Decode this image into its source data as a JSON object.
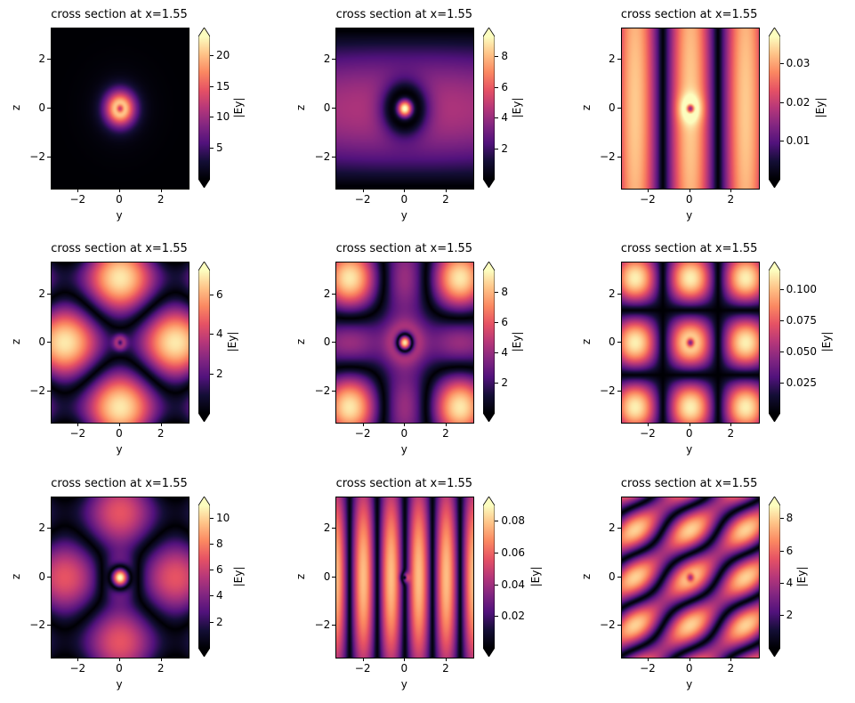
{
  "figure": {
    "background": "#ffffff",
    "colormap": "magma",
    "colormap_stops": [
      [
        0.0,
        "#000004"
      ],
      [
        0.125,
        "#140e36"
      ],
      [
        0.25,
        "#51127c"
      ],
      [
        0.375,
        "#822681"
      ],
      [
        0.5,
        "#b73779"
      ],
      [
        0.625,
        "#e65264"
      ],
      [
        0.75,
        "#fb8861"
      ],
      [
        0.875,
        "#fec287"
      ],
      [
        1.0,
        "#fcfdbf"
      ]
    ]
  },
  "chart_data": [
    {
      "type": "heatmap",
      "title": "cross section at x=1.55",
      "xlabel": "y",
      "ylabel": "z",
      "x_range": [
        -3.3,
        3.3
      ],
      "y_range": [
        -3.3,
        3.3
      ],
      "x_ticks": [
        {
          "v": -2,
          "label": "−2"
        },
        {
          "v": 0,
          "label": "0"
        },
        {
          "v": 2,
          "label": "2"
        }
      ],
      "y_ticks": [
        {
          "v": 2,
          "label": "2"
        },
        {
          "v": 0,
          "label": "0"
        },
        {
          "v": -2,
          "label": "−2"
        }
      ],
      "colorbar": {
        "label": "|Ey|",
        "vmin": 0,
        "vmax": 23,
        "ticks": [
          {
            "v": 5,
            "label": "5"
          },
          {
            "v": 10,
            "label": "10"
          },
          {
            "v": 15,
            "label": "15"
          },
          {
            "v": 20,
            "label": "20"
          }
        ]
      },
      "field": {
        "terms": [
          {
            "type": "gauss",
            "amp": 23,
            "sigma": 0.5
          },
          {
            "type": "gauss",
            "amp": -12,
            "sigma": 0.12
          },
          {
            "type": "gauss",
            "amp": 1.3,
            "sigma": 1.1
          }
        ]
      }
    },
    {
      "type": "heatmap",
      "title": "cross section at x=1.55",
      "xlabel": "y",
      "ylabel": "z",
      "x_range": [
        -3.3,
        3.3
      ],
      "y_range": [
        -3.3,
        3.3
      ],
      "x_ticks": [
        {
          "v": -2,
          "label": "−2"
        },
        {
          "v": 0,
          "label": "0"
        },
        {
          "v": 2,
          "label": "2"
        }
      ],
      "y_ticks": [
        {
          "v": 2,
          "label": "2"
        },
        {
          "v": 0,
          "label": "0"
        },
        {
          "v": -2,
          "label": "−2"
        }
      ],
      "colorbar": {
        "label": "|Ey|",
        "vmin": 0,
        "vmax": 9.3,
        "ticks": [
          {
            "v": 2,
            "label": "2"
          },
          {
            "v": 4,
            "label": "4"
          },
          {
            "v": 6,
            "label": "6"
          },
          {
            "v": 8,
            "label": "8"
          }
        ]
      },
      "field": {
        "terms": [
          {
            "type": "mode",
            "amp": 4.6,
            "fy": "cos",
            "ky": 0.12,
            "fz": "cos",
            "kz": 0.49
          },
          {
            "type": "gauss",
            "amp": -8,
            "sigma": 0.7
          },
          {
            "type": "gauss",
            "amp": 13,
            "sigma": 0.28
          }
        ]
      }
    },
    {
      "type": "heatmap",
      "title": "cross section at x=1.55",
      "xlabel": "y",
      "ylabel": "z",
      "x_range": [
        -3.3,
        3.3
      ],
      "y_range": [
        -3.3,
        3.3
      ],
      "x_ticks": [
        {
          "v": -2,
          "label": "−2"
        },
        {
          "v": 0,
          "label": "0"
        },
        {
          "v": 2,
          "label": "2"
        }
      ],
      "y_ticks": [
        {
          "v": 2,
          "label": "2"
        },
        {
          "v": 0,
          "label": "0"
        },
        {
          "v": -2,
          "label": "−2"
        }
      ],
      "colorbar": {
        "label": "|Ey|",
        "vmin": 0,
        "vmax": 0.037,
        "ticks": [
          {
            "v": 0.01,
            "label": "0.01"
          },
          {
            "v": 0.02,
            "label": "0.02"
          },
          {
            "v": 0.03,
            "label": "0.03"
          }
        ]
      },
      "field": {
        "terms": [
          {
            "type": "mode",
            "amp": 0.033,
            "fy": "cos",
            "ky": 1.18,
            "fz": "cos",
            "kz": 0.1
          },
          {
            "type": "gauss",
            "amp": -0.03,
            "sigma": 0.13
          },
          {
            "type": "gauss",
            "amp": 0.012,
            "sigma": 0.4
          }
        ]
      }
    },
    {
      "type": "heatmap",
      "title": "cross section at x=1.55",
      "xlabel": "y",
      "ylabel": "z",
      "x_range": [
        -3.3,
        3.3
      ],
      "y_range": [
        -3.3,
        3.3
      ],
      "x_ticks": [
        {
          "v": -2,
          "label": "−2"
        },
        {
          "v": 0,
          "label": "0"
        },
        {
          "v": 2,
          "label": "2"
        }
      ],
      "y_ticks": [
        {
          "v": 2,
          "label": "2"
        },
        {
          "v": 0,
          "label": "0"
        },
        {
          "v": -2,
          "label": "−2"
        }
      ],
      "colorbar": {
        "label": "|Ey|",
        "vmin": 0,
        "vmax": 7.2,
        "ticks": [
          {
            "v": 2,
            "label": "2"
          },
          {
            "v": 4,
            "label": "4"
          },
          {
            "v": 6,
            "label": "6"
          }
        ]
      },
      "field": {
        "terms": [
          {
            "type": "mode",
            "amp": 3.9,
            "fy": "cos",
            "ky": 0,
            "fz": "cos",
            "kz": 1.18
          },
          {
            "type": "mode",
            "amp": -3.0,
            "fy": "cos",
            "ky": 1.18,
            "fz": "cos",
            "kz": 0
          },
          {
            "type": "gauss",
            "amp": 4,
            "sigma": 0.22
          },
          {
            "type": "gauss",
            "amp": -3.5,
            "sigma": 0.09
          }
        ]
      }
    },
    {
      "type": "heatmap",
      "title": "cross section at x=1.55",
      "xlabel": "y",
      "ylabel": "z",
      "x_range": [
        -3.3,
        3.3
      ],
      "y_range": [
        -3.3,
        3.3
      ],
      "x_ticks": [
        {
          "v": -2,
          "label": "−2"
        },
        {
          "v": 0,
          "label": "0"
        },
        {
          "v": 2,
          "label": "2"
        }
      ],
      "y_ticks": [
        {
          "v": 2,
          "label": "2"
        },
        {
          "v": 0,
          "label": "0"
        },
        {
          "v": -2,
          "label": "−2"
        }
      ],
      "colorbar": {
        "label": "|Ey|",
        "vmin": 0,
        "vmax": 9.4,
        "ticks": [
          {
            "v": 2,
            "label": "2"
          },
          {
            "v": 4,
            "label": "4"
          },
          {
            "v": 6,
            "label": "6"
          },
          {
            "v": 8,
            "label": "8"
          }
        ]
      },
      "field": {
        "terms": [
          {
            "type": "mode",
            "amp": 4,
            "fy": "cos",
            "ky": 1.18,
            "fz": "cos",
            "kz": 1.18
          },
          {
            "type": "mode",
            "amp": -2.5,
            "fy": "cos",
            "ky": 1.18,
            "fz": "cos",
            "kz": 0
          },
          {
            "type": "mode",
            "amp": -2.5,
            "fy": "cos",
            "ky": 0,
            "fz": "cos",
            "kz": 1.18
          },
          {
            "type": "gauss",
            "amp": -6,
            "sigma": 0.65
          },
          {
            "type": "gauss",
            "amp": 16,
            "sigma": 0.26
          }
        ]
      }
    },
    {
      "type": "heatmap",
      "title": "cross section at x=1.55",
      "xlabel": "y",
      "ylabel": "z",
      "x_range": [
        -3.3,
        3.3
      ],
      "y_range": [
        -3.3,
        3.3
      ],
      "x_ticks": [
        {
          "v": -2,
          "label": "−2"
        },
        {
          "v": 0,
          "label": "0"
        },
        {
          "v": 2,
          "label": "2"
        }
      ],
      "y_ticks": [
        {
          "v": 2,
          "label": "2"
        },
        {
          "v": 0,
          "label": "0"
        },
        {
          "v": -2,
          "label": "−2"
        }
      ],
      "colorbar": {
        "label": "|Ey|",
        "vmin": 0,
        "vmax": 0.115,
        "ticks": [
          {
            "v": 0.025,
            "label": "0.025"
          },
          {
            "v": 0.05,
            "label": "0.050"
          },
          {
            "v": 0.075,
            "label": "0.075"
          },
          {
            "v": 0.1,
            "label": "0.100"
          }
        ]
      },
      "field": {
        "terms": [
          {
            "type": "mode",
            "amp": 0.112,
            "fy": "cos",
            "ky": 1.18,
            "fz": "cos",
            "kz": 1.18
          },
          {
            "type": "gauss",
            "amp": -0.07,
            "sigma": 0.12
          }
        ]
      }
    },
    {
      "type": "heatmap",
      "title": "cross section at x=1.55",
      "xlabel": "y",
      "ylabel": "z",
      "x_range": [
        -3.3,
        3.3
      ],
      "y_range": [
        -3.3,
        3.3
      ],
      "x_ticks": [
        {
          "v": -2,
          "label": "−2"
        },
        {
          "v": 0,
          "label": "0"
        },
        {
          "v": 2,
          "label": "2"
        }
      ],
      "y_ticks": [
        {
          "v": 2,
          "label": "2"
        },
        {
          "v": 0,
          "label": "0"
        },
        {
          "v": -2,
          "label": "−2"
        }
      ],
      "colorbar": {
        "label": "|Ey|",
        "vmin": 0,
        "vmax": 11,
        "ticks": [
          {
            "v": 2,
            "label": "2"
          },
          {
            "v": 4,
            "label": "4"
          },
          {
            "v": 6,
            "label": "6"
          },
          {
            "v": 8,
            "label": "8"
          },
          {
            "v": 10,
            "label": "10"
          }
        ]
      },
      "field": {
        "terms": [
          {
            "type": "mode",
            "amp": 3.8,
            "fy": "cos",
            "ky": 0,
            "fz": "cos",
            "kz": 1.18
          },
          {
            "type": "mode",
            "amp": -3.1,
            "fy": "cos",
            "ky": 1.18,
            "fz": "cos",
            "kz": 0
          },
          {
            "type": "gauss",
            "amp": -7,
            "sigma": 0.6
          },
          {
            "type": "gauss",
            "amp": 17.5,
            "sigma": 0.3
          }
        ]
      }
    },
    {
      "type": "heatmap",
      "title": "cross section at x=1.55",
      "xlabel": "y",
      "ylabel": "z",
      "x_range": [
        -3.3,
        3.3
      ],
      "y_range": [
        -3.3,
        3.3
      ],
      "x_ticks": [
        {
          "v": -2,
          "label": "−2"
        },
        {
          "v": 0,
          "label": "0"
        },
        {
          "v": 2,
          "label": "2"
        }
      ],
      "y_ticks": [
        {
          "v": 2,
          "label": "2"
        },
        {
          "v": 0,
          "label": "0"
        },
        {
          "v": -2,
          "label": "−2"
        }
      ],
      "colorbar": {
        "label": "|Ey|",
        "vmin": 0,
        "vmax": 0.09,
        "ticks": [
          {
            "v": 0.02,
            "label": "0.02"
          },
          {
            "v": 0.04,
            "label": "0.04"
          },
          {
            "v": 0.06,
            "label": "0.06"
          },
          {
            "v": 0.08,
            "label": "0.08"
          }
        ]
      },
      "field": {
        "terms": [
          {
            "type": "mode",
            "amp": 0.078,
            "fy": "sin",
            "ky": 2.36,
            "fz": "cos",
            "kz": 0.28
          },
          {
            "type": "gauss",
            "amp": 0.05,
            "sigma": 0.14
          },
          {
            "type": "gauss",
            "amp": -0.05,
            "sigma": 0.06
          }
        ]
      }
    },
    {
      "type": "heatmap",
      "title": "cross section at x=1.55",
      "xlabel": "y",
      "ylabel": "z",
      "x_range": [
        -3.3,
        3.3
      ],
      "y_range": [
        -3.3,
        3.3
      ],
      "x_ticks": [
        {
          "v": -2,
          "label": "−2"
        },
        {
          "v": 0,
          "label": "0"
        },
        {
          "v": 2,
          "label": "2"
        }
      ],
      "y_ticks": [
        {
          "v": 2,
          "label": "2"
        },
        {
          "v": 0,
          "label": "0"
        },
        {
          "v": -2,
          "label": "−2"
        }
      ],
      "colorbar": {
        "label": "|Ey|",
        "vmin": 0,
        "vmax": 8.8,
        "ticks": [
          {
            "v": 2,
            "label": "2"
          },
          {
            "v": 4,
            "label": "4"
          },
          {
            "v": 6,
            "label": "6"
          },
          {
            "v": 8,
            "label": "8"
          }
        ]
      },
      "field": {
        "terms": [
          {
            "type": "mode",
            "amp": 8,
            "fy": "cos",
            "ky": 1.18,
            "fz": "cos",
            "kz": 1.6
          },
          {
            "type": "mode",
            "amp": 4,
            "fy": "sin",
            "ky": 1.18,
            "fz": "sin",
            "kz": 1.6
          },
          {
            "type": "gauss",
            "amp": -4,
            "sigma": 0.12
          }
        ]
      }
    }
  ]
}
